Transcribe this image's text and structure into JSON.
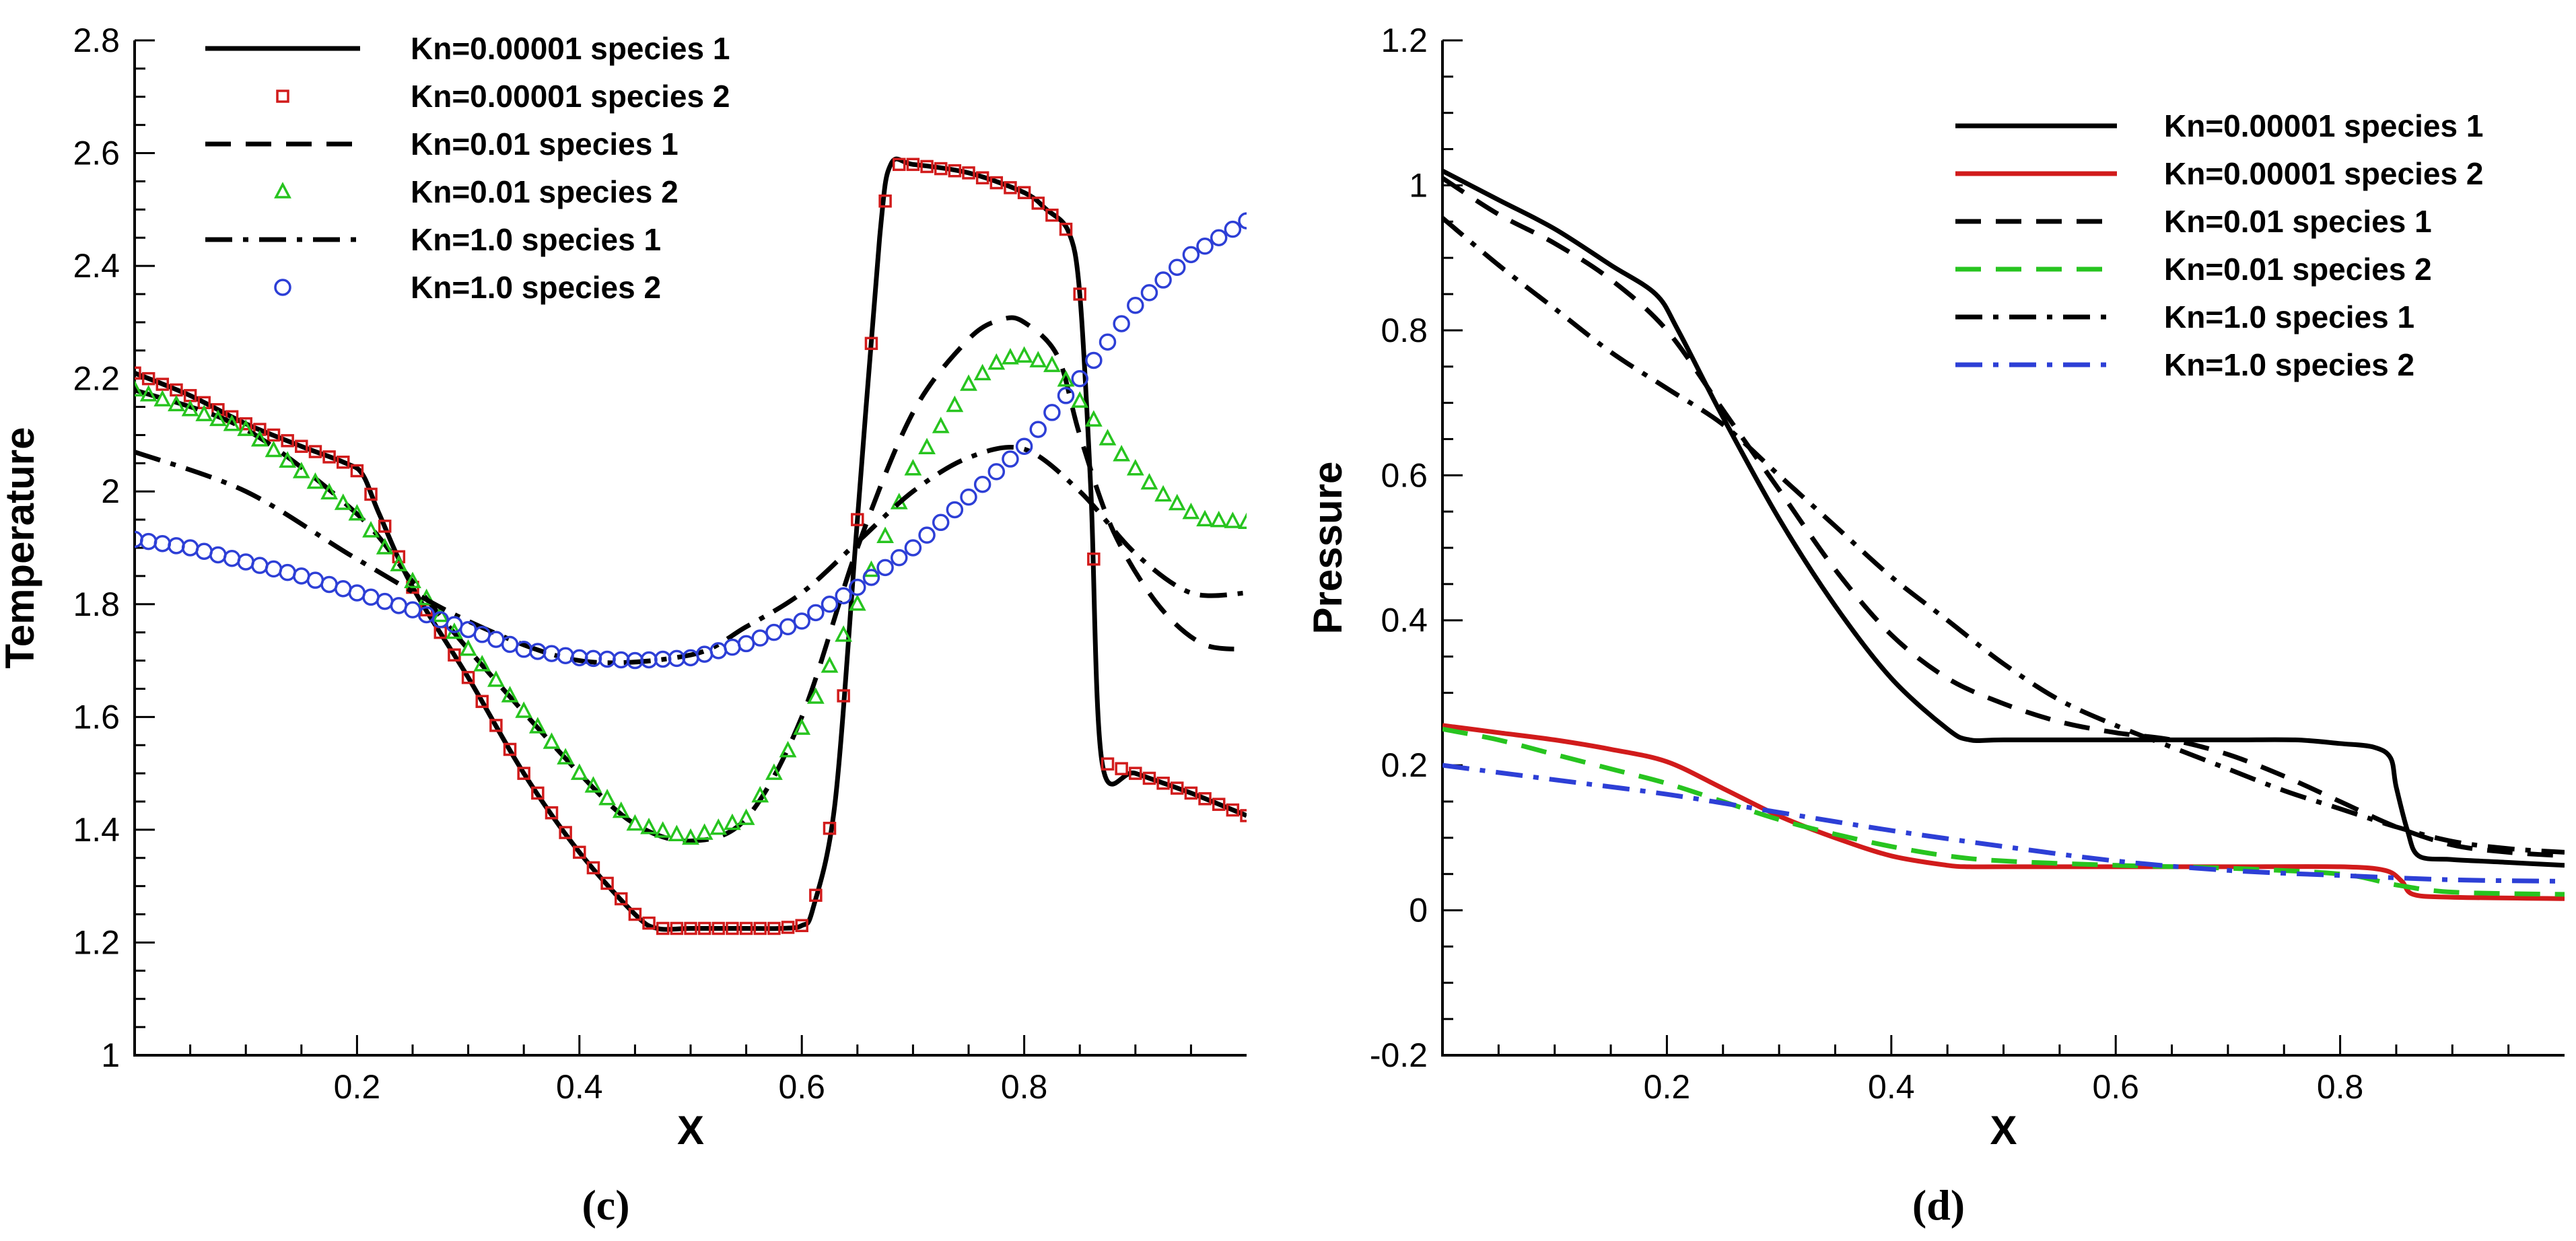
{
  "chart_data": [
    {
      "type": "line",
      "panel_label": "(c)",
      "xlabel": "X",
      "ylabel": "Temperature",
      "xlim": [
        0,
        1
      ],
      "ylim": [
        1,
        2.8
      ],
      "xticks": [
        0.2,
        0.4,
        0.6,
        0.8
      ],
      "xtick_labels": [
        "0.2",
        "0.4",
        "0.6",
        "0.8"
      ],
      "yticks": [
        1,
        1.2,
        1.4,
        1.6,
        1.8,
        2,
        2.2,
        2.4,
        2.6,
        2.8
      ],
      "ytick_labels": [
        "1",
        "1.2",
        "1.4",
        "1.6",
        "1.8",
        "2",
        "2.2",
        "2.4",
        "2.6",
        "2.8"
      ],
      "legend_position": "top-left",
      "series": [
        {
          "name": "Kn=0.00001 species 1",
          "style": "solid",
          "color": "#000000",
          "marker": "none",
          "x": [
            0.0,
            0.05,
            0.1,
            0.15,
            0.19,
            0.205,
            0.22,
            0.25,
            0.3,
            0.35,
            0.4,
            0.45,
            0.47,
            0.5,
            0.55,
            0.58,
            0.6,
            0.61,
            0.63,
            0.65,
            0.67,
            0.68,
            0.7,
            0.75,
            0.8,
            0.82,
            0.84,
            0.85,
            0.86,
            0.87,
            0.9,
            0.95,
            1.0
          ],
          "y": [
            2.21,
            2.17,
            2.12,
            2.08,
            2.05,
            2.03,
            1.96,
            1.83,
            1.67,
            1.5,
            1.36,
            1.25,
            1.225,
            1.225,
            1.225,
            1.225,
            1.23,
            1.26,
            1.45,
            1.95,
            2.45,
            2.58,
            2.58,
            2.565,
            2.53,
            2.5,
            2.46,
            2.35,
            2.0,
            1.52,
            1.5,
            1.465,
            1.425
          ]
        },
        {
          "name": "Kn=0.00001 species 2",
          "style": "none",
          "color": "#d11b1b",
          "marker": "square",
          "x": [
            0.0,
            0.05,
            0.1,
            0.15,
            0.19,
            0.205,
            0.22,
            0.25,
            0.3,
            0.35,
            0.4,
            0.45,
            0.47,
            0.5,
            0.55,
            0.58,
            0.6,
            0.61,
            0.63,
            0.65,
            0.67,
            0.68,
            0.7,
            0.75,
            0.8,
            0.82,
            0.84,
            0.85,
            0.86,
            0.87,
            0.9,
            0.95,
            1.0
          ],
          "y": [
            2.21,
            2.17,
            2.12,
            2.08,
            2.05,
            2.03,
            1.96,
            1.83,
            1.67,
            1.5,
            1.36,
            1.25,
            1.225,
            1.225,
            1.225,
            1.225,
            1.23,
            1.26,
            1.45,
            1.95,
            2.45,
            2.58,
            2.58,
            2.565,
            2.53,
            2.5,
            2.46,
            2.35,
            2.0,
            1.52,
            1.5,
            1.465,
            1.425
          ]
        },
        {
          "name": "Kn=0.01 species 1",
          "style": "dashed",
          "color": "#000000",
          "marker": "none",
          "x": [
            0.0,
            0.1,
            0.2,
            0.25,
            0.3,
            0.4,
            0.45,
            0.5,
            0.55,
            0.6,
            0.65,
            0.7,
            0.75,
            0.78,
            0.8,
            0.83,
            0.85,
            0.88,
            0.92,
            0.96,
            1.0
          ],
          "y": [
            2.18,
            2.11,
            1.96,
            1.84,
            1.72,
            1.5,
            1.41,
            1.38,
            1.42,
            1.6,
            1.9,
            2.14,
            2.27,
            2.305,
            2.3,
            2.24,
            2.1,
            1.93,
            1.8,
            1.73,
            1.72
          ]
        },
        {
          "name": "Kn=0.01 species 2",
          "style": "none",
          "color": "#27c41f",
          "marker": "triangle",
          "x": [
            0.0,
            0.1,
            0.2,
            0.25,
            0.3,
            0.4,
            0.45,
            0.5,
            0.55,
            0.6,
            0.65,
            0.7,
            0.75,
            0.78,
            0.8,
            0.83,
            0.85,
            0.88,
            0.92,
            0.96,
            1.0
          ],
          "y": [
            2.18,
            2.11,
            1.96,
            1.84,
            1.72,
            1.5,
            1.41,
            1.385,
            1.42,
            1.58,
            1.8,
            2.04,
            2.19,
            2.235,
            2.24,
            2.22,
            2.16,
            2.08,
            2.0,
            1.95,
            1.945
          ]
        },
        {
          "name": "Kn=1.0 species 1",
          "style": "dashdot",
          "color": "#000000",
          "marker": "none",
          "x": [
            0.0,
            0.1,
            0.2,
            0.3,
            0.4,
            0.5,
            0.55,
            0.6,
            0.65,
            0.7,
            0.75,
            0.8,
            0.85,
            0.9,
            0.95,
            1.0
          ],
          "y": [
            2.07,
            2.0,
            1.88,
            1.77,
            1.7,
            1.71,
            1.76,
            1.82,
            1.91,
            2.0,
            2.06,
            2.075,
            2.0,
            1.89,
            1.82,
            1.82
          ]
        },
        {
          "name": "Kn=1.0 species 2",
          "style": "none",
          "color": "#2d3fd6",
          "marker": "circle",
          "x": [
            0.0,
            0.05,
            0.1,
            0.15,
            0.2,
            0.25,
            0.3,
            0.35,
            0.4,
            0.45,
            0.5,
            0.55,
            0.6,
            0.65,
            0.7,
            0.75,
            0.8,
            0.85,
            0.9,
            0.95,
            1.0
          ],
          "y": [
            1.915,
            1.9,
            1.875,
            1.85,
            1.82,
            1.79,
            1.755,
            1.72,
            1.705,
            1.7,
            1.705,
            1.73,
            1.77,
            1.83,
            1.9,
            1.99,
            2.08,
            2.2,
            2.33,
            2.42,
            2.48
          ]
        }
      ]
    },
    {
      "type": "line",
      "panel_label": "(d)",
      "xlabel": "X",
      "ylabel": "Pressure",
      "xlim": [
        0,
        1
      ],
      "ylim": [
        -0.2,
        1.2
      ],
      "xticks": [
        0.2,
        0.4,
        0.6,
        0.8
      ],
      "xtick_labels": [
        "0.2",
        "0.4",
        "0.6",
        "0.8"
      ],
      "yticks": [
        -0.2,
        0,
        0.2,
        0.4,
        0.6,
        0.8,
        1,
        1.2
      ],
      "ytick_labels": [
        "-0.2",
        "0",
        "0.2",
        "0.4",
        "0.6",
        "0.8",
        "1",
        "1.2"
      ],
      "legend_position": "top-right",
      "series": [
        {
          "name": "Kn=0.00001 species 1",
          "style": "solid",
          "color": "#000000",
          "x": [
            0.0,
            0.05,
            0.1,
            0.15,
            0.19,
            0.21,
            0.25,
            0.3,
            0.35,
            0.4,
            0.45,
            0.47,
            0.5,
            0.6,
            0.7,
            0.76,
            0.8,
            0.83,
            0.845,
            0.85,
            0.86,
            0.87,
            0.9,
            0.95,
            1.0
          ],
          "y": [
            1.02,
            0.98,
            0.94,
            0.89,
            0.85,
            0.8,
            0.68,
            0.54,
            0.42,
            0.32,
            0.25,
            0.235,
            0.235,
            0.235,
            0.235,
            0.235,
            0.23,
            0.225,
            0.21,
            0.17,
            0.11,
            0.075,
            0.07,
            0.066,
            0.062
          ]
        },
        {
          "name": "Kn=0.00001 species 2",
          "style": "solid",
          "color": "#d11b1b",
          "x": [
            0.0,
            0.05,
            0.1,
            0.15,
            0.2,
            0.25,
            0.3,
            0.35,
            0.4,
            0.45,
            0.47,
            0.5,
            0.6,
            0.7,
            0.8,
            0.84,
            0.855,
            0.865,
            0.9,
            1.0
          ],
          "y": [
            0.255,
            0.245,
            0.235,
            0.222,
            0.205,
            0.168,
            0.13,
            0.1,
            0.075,
            0.062,
            0.06,
            0.06,
            0.06,
            0.06,
            0.06,
            0.055,
            0.04,
            0.022,
            0.018,
            0.016
          ]
        },
        {
          "name": "Kn=0.01 species 1",
          "style": "dashed",
          "color": "#000000",
          "x": [
            0.0,
            0.05,
            0.1,
            0.15,
            0.2,
            0.25,
            0.3,
            0.35,
            0.4,
            0.45,
            0.5,
            0.55,
            0.6,
            0.65,
            0.7,
            0.75,
            0.8,
            0.85,
            0.9,
            0.95,
            1.0
          ],
          "y": [
            1.01,
            0.96,
            0.92,
            0.87,
            0.8,
            0.69,
            0.58,
            0.47,
            0.38,
            0.32,
            0.285,
            0.26,
            0.245,
            0.235,
            0.215,
            0.185,
            0.15,
            0.115,
            0.09,
            0.08,
            0.075
          ]
        },
        {
          "name": "Kn=0.01 species 2",
          "style": "dashed",
          "color": "#27c41f",
          "x": [
            0.0,
            0.05,
            0.1,
            0.15,
            0.2,
            0.25,
            0.3,
            0.35,
            0.4,
            0.45,
            0.5,
            0.6,
            0.7,
            0.8,
            0.85,
            0.9,
            1.0
          ],
          "y": [
            0.25,
            0.235,
            0.215,
            0.195,
            0.175,
            0.15,
            0.125,
            0.105,
            0.088,
            0.075,
            0.068,
            0.062,
            0.058,
            0.05,
            0.035,
            0.025,
            0.022
          ]
        },
        {
          "name": "Kn=1.0 species 1",
          "style": "dashdot",
          "color": "#000000",
          "x": [
            0.0,
            0.05,
            0.1,
            0.15,
            0.2,
            0.25,
            0.3,
            0.35,
            0.4,
            0.45,
            0.5,
            0.55,
            0.6,
            0.65,
            0.7,
            0.75,
            0.8,
            0.85,
            0.9,
            0.95,
            1.0
          ],
          "y": [
            0.955,
            0.89,
            0.83,
            0.77,
            0.72,
            0.67,
            0.6,
            0.53,
            0.46,
            0.4,
            0.34,
            0.29,
            0.255,
            0.225,
            0.195,
            0.165,
            0.14,
            0.115,
            0.095,
            0.085,
            0.08
          ]
        },
        {
          "name": "Kn=1.0 species 2",
          "style": "dashdot",
          "color": "#2d3fd6",
          "x": [
            0.0,
            0.1,
            0.2,
            0.3,
            0.4,
            0.5,
            0.6,
            0.7,
            0.8,
            0.9,
            1.0
          ],
          "y": [
            0.2,
            0.18,
            0.16,
            0.135,
            0.11,
            0.088,
            0.068,
            0.055,
            0.048,
            0.042,
            0.04
          ]
        }
      ]
    }
  ]
}
